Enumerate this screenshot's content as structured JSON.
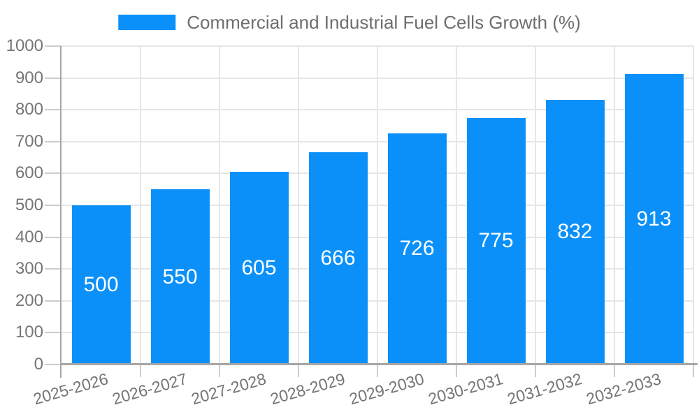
{
  "colors": {
    "bar": "#0a90f8",
    "axis_line": "#a6a6a6",
    "tick": "#cccccc",
    "grid": "#e6e6e6",
    "axis_text": "#757575",
    "legend_text": "#6e6e6e",
    "value_text": "#ffffff",
    "background": "#ffffff"
  },
  "legend": {
    "position": "top",
    "label": "Commercial and Industrial Fuel Cells Growth (%)"
  },
  "chart_data": {
    "type": "bar",
    "title": "Commercial and Industrial Fuel Cells Growth (%)",
    "categories": [
      "2025-2026",
      "2026-2027",
      "2027-2028",
      "2028-2029",
      "2029-2030",
      "2030-2031",
      "2031-2032",
      "2032-2033"
    ],
    "values": [
      500,
      550,
      605,
      666,
      726,
      775,
      832,
      913
    ],
    "series": [
      {
        "name": "Commercial and Industrial Fuel Cells Growth (%)",
        "values": [
          500,
          550,
          605,
          666,
          726,
          775,
          832,
          913
        ]
      }
    ],
    "xlabel": "",
    "ylabel": "",
    "ylim": [
      0,
      1000
    ],
    "yticks": [
      0,
      100,
      200,
      300,
      400,
      500,
      600,
      700,
      800,
      900,
      1000
    ],
    "grid": true,
    "legend_position": "top",
    "x_label_rotation_deg": -16,
    "bar_value_labels": true
  }
}
